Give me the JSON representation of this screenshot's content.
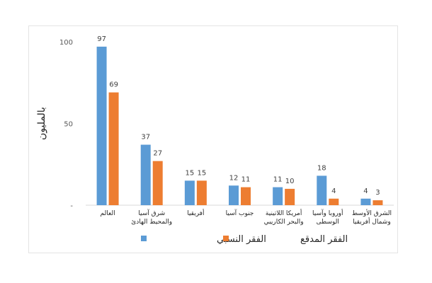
{
  "chart_data": {
    "type": "bar",
    "ylabel": "بالمليون",
    "ylim": [
      0,
      100
    ],
    "yticks": [
      0,
      50,
      100
    ],
    "ytick_labels": [
      "-",
      "50",
      "100"
    ],
    "categories": [
      [
        "العالم"
      ],
      [
        "شرق آسيا",
        "والمحيط الهادئ"
      ],
      [
        "أفريقيا"
      ],
      [
        "جنوب آسيا"
      ],
      [
        "أمريكا اللاتينية",
        "والبحر الكاريبي"
      ],
      [
        "أوروبا وآسيا",
        "الوسطى"
      ],
      [
        "الشرق الأوسط",
        "وشمال أفريقيا"
      ]
    ],
    "series": [
      {
        "name": "الفقر النسبي",
        "color": "#5b9bd5",
        "values": [
          97,
          37,
          15,
          12,
          11,
          18,
          4
        ]
      },
      {
        "name": "الفقر المدقع",
        "color": "#ed7d31",
        "values": [
          69,
          27,
          15,
          11,
          10,
          4,
          3
        ]
      }
    ],
    "legend_position": "bottom"
  }
}
